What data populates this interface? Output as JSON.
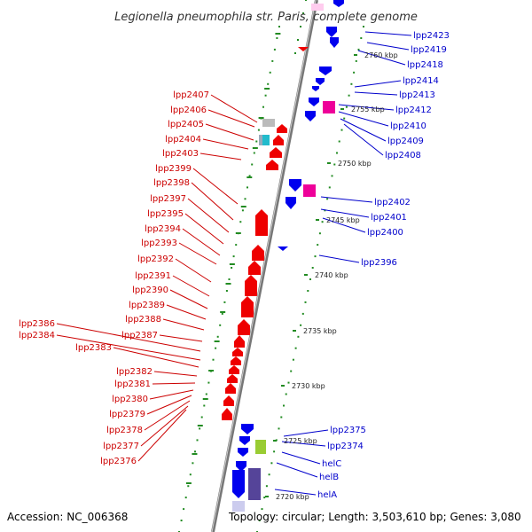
{
  "title": "Legionella pneumophila str. Paris, complete genome",
  "footer": {
    "accession": "Accession: NC_006368",
    "topology": "Topology: circular; Length: 3,503,610 bp; Genes: 3,080"
  },
  "colors": {
    "forward_gene": "#0000ee",
    "reverse_gene": "#ee0000",
    "rna_gene": "#ee0099",
    "tick_green": "#228b22",
    "backbone": "#999999",
    "left_label": "#cc0000",
    "right_label": "#0000cc"
  },
  "scale_labels": [
    "2760 kbp",
    "2755 kbp",
    "2750 kbp",
    "2745 kbp",
    "2740 kbp",
    "2735 kbp",
    "2730 kbp",
    "2725 kbp",
    "2720 kbp"
  ],
  "left_genes": [
    "lpp2407",
    "lpp2406",
    "lpp2405",
    "lpp2404",
    "lpp2403",
    "lpp2399",
    "lpp2398",
    "lpp2397",
    "lpp2395",
    "lpp2394",
    "lpp2393",
    "lpp2392",
    "lpp2391",
    "lpp2390",
    "lpp2389",
    "lpp2388",
    "lpp2387",
    "lpp2386",
    "lpp2384",
    "lpp2383",
    "lpp2382",
    "lpp2381",
    "lpp2380",
    "lpp2379",
    "lpp2378",
    "lpp2377",
    "lpp2376"
  ],
  "right_genes": [
    "lpp2423",
    "lpp2419",
    "lpp2418",
    "lpp2414",
    "lpp2413",
    "lpp2412",
    "lpp2410",
    "lpp2409",
    "lpp2408",
    "lpp2402",
    "lpp2401",
    "lpp2400",
    "lpp2396",
    "lpp2375",
    "lpp2374",
    "helC",
    "helB",
    "helA"
  ]
}
